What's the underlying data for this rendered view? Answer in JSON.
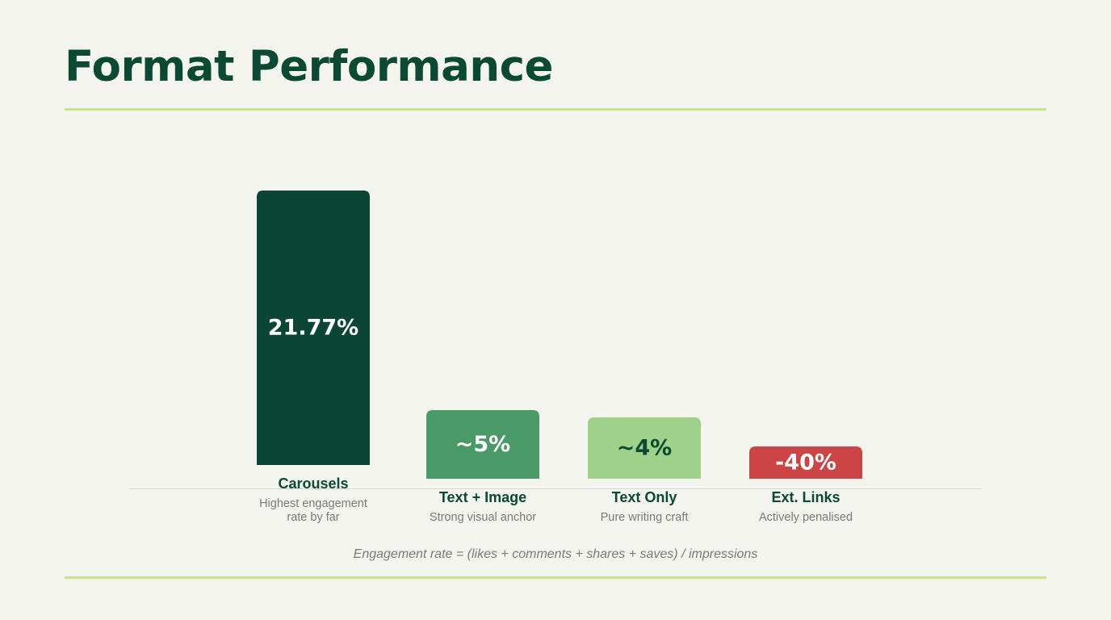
{
  "slide": {
    "title": "Format Performance",
    "footnote": "Engagement rate = (likes + comments + shares + saves) / impressions"
  },
  "colors": {
    "title": "#0b4a32",
    "accent_rule": "#c6e38a",
    "background": "#f4f4ef"
  },
  "chart_data": {
    "type": "bar",
    "title": "",
    "xlabel": "",
    "ylabel": "",
    "categories": [
      "Carousels",
      "Text + Image",
      "Text Only",
      "Ext. Links"
    ],
    "values": [
      21.77,
      5,
      4,
      -40
    ],
    "value_labels": [
      "21.77%",
      "~5%",
      "~4%",
      "-40%"
    ],
    "descriptions": [
      [
        "Highest engagement",
        "rate by far"
      ],
      [
        "Strong visual anchor"
      ],
      [
        "Pure writing craft"
      ],
      [
        "Actively penalised"
      ]
    ],
    "bar_colors": [
      "#0a4633",
      "#4a9a68",
      "#9fd18a",
      "#cc4444"
    ],
    "label_colors": [
      "#ffffff",
      "#ffffff",
      "#0b4a32",
      "#ffffff"
    ],
    "grid": false,
    "legend": "none"
  }
}
